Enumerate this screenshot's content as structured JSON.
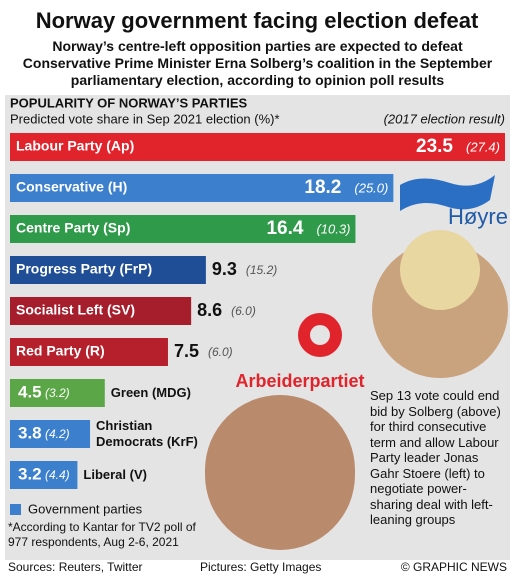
{
  "chart_data": {
    "type": "bar",
    "title": "Norway government facing election defeat",
    "subtitle": "Norway’s centre-left opposition parties are expected to defeat Conservative Prime Minister Erna Solberg’s coalition in the September parliamentary election, according to opinion poll results",
    "section_title": "POPULARITY OF NORWAY’S PARTIES",
    "value_axis_label": "Predicted vote share in Sep 2021 election (%)*",
    "categories": [
      "Labour Party (Ap)",
      "Conservative (H)",
      "Centre Party (Sp)",
      "Progress Party (FrP)",
      "Socialist Left (SV)",
      "Red Party (R)",
      "Green (MDG)",
      "Christian Democrats (KrF)",
      "Liberal (V)"
    ],
    "colors": [
      "#e1242c",
      "#3b7fcd",
      "#2f9a4a",
      "#1f4e97",
      "#a61d2b",
      "#b5202c",
      "#5ba646",
      "#3b7fcd",
      "#3b7fcd"
    ],
    "series": [
      {
        "name": "Predicted",
        "values": [
          23.5,
          18.2,
          16.4,
          9.3,
          8.6,
          7.5,
          4.5,
          3.8,
          3.2
        ]
      },
      {
        "name": "(2017 election result)",
        "values": [
          27.4,
          25.0,
          10.3,
          15.2,
          6.0,
          6.0,
          3.2,
          4.2,
          4.4
        ],
        "value_labels": [
          "(27.4)",
          "(25.0)",
          "(10.3)",
          "(15.2)",
          "(6.0)",
          "(6.0)",
          "(3.2)",
          "(4.2)",
          "(4.4)"
        ]
      }
    ],
    "xlim": [
      0,
      23.5
    ],
    "legend": {
      "label": "Government parties",
      "color": "#3b7fcd"
    },
    "logos": [
      "Høyre",
      "Arbeiderpartiet"
    ],
    "annotation": "Sep 13 vote could end bid by Solberg (above) for third consecutive term and allow Labour Party leader Jonas Gahr Stoere (left) to negotiate power-sharing deal with left-leaning groups",
    "footnote": "*According to Kantar for TV2 poll of 977 respondents, Aug 2-6, 2021",
    "sources": "Sources: Reuters, Twitter",
    "pictures": "Pictures: Getty Images",
    "credit": "© GRAPHIC NEWS"
  }
}
